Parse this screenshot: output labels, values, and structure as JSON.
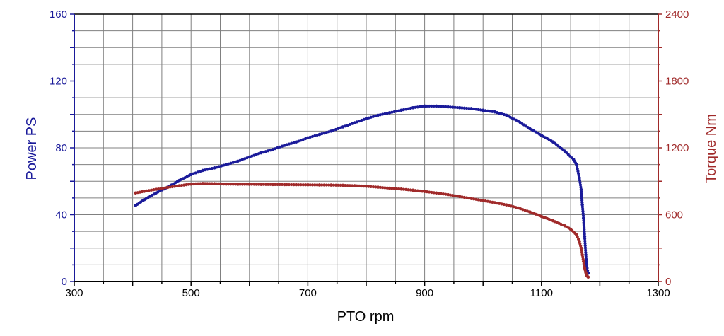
{
  "chart_data": {
    "type": "scatter",
    "title": "",
    "xlabel": "PTO rpm",
    "ylabel_left": "Power PS",
    "ylabel_right": "Torque Nm",
    "xlim": [
      300,
      1300
    ],
    "ylim_left": [
      0,
      160
    ],
    "ylim_right": [
      0,
      2400
    ],
    "grid": true,
    "x_ticks": [
      "300",
      "500",
      "700",
      "900",
      "1100",
      "1300"
    ],
    "y_left_ticks": [
      "0",
      "40",
      "80",
      "120",
      "160"
    ],
    "y_right_ticks": [
      "0",
      "600",
      "1200",
      "1800",
      "2400"
    ],
    "colors": {
      "power": "#1a1a9a",
      "torque": "#a02a2a",
      "grid": "#808080",
      "axis": "#000000"
    },
    "series": [
      {
        "name": "Power PS",
        "axis": "left",
        "points": [
          [
            405,
            45.5
          ],
          [
            420,
            49
          ],
          [
            440,
            53
          ],
          [
            460,
            56.5
          ],
          [
            480,
            60.5
          ],
          [
            500,
            64
          ],
          [
            520,
            66.5
          ],
          [
            540,
            68
          ],
          [
            560,
            70
          ],
          [
            580,
            72
          ],
          [
            600,
            74.5
          ],
          [
            620,
            77
          ],
          [
            640,
            79
          ],
          [
            660,
            81.5
          ],
          [
            680,
            83.5
          ],
          [
            700,
            86
          ],
          [
            720,
            88
          ],
          [
            740,
            90
          ],
          [
            760,
            92.5
          ],
          [
            780,
            95
          ],
          [
            800,
            97.5
          ],
          [
            820,
            99.5
          ],
          [
            840,
            101
          ],
          [
            860,
            102.5
          ],
          [
            880,
            104
          ],
          [
            900,
            105
          ],
          [
            920,
            105
          ],
          [
            940,
            104.5
          ],
          [
            960,
            104
          ],
          [
            980,
            103.5
          ],
          [
            1000,
            102.5
          ],
          [
            1020,
            101.5
          ],
          [
            1040,
            99.5
          ],
          [
            1060,
            96
          ],
          [
            1080,
            91.5
          ],
          [
            1100,
            87.5
          ],
          [
            1120,
            83.5
          ],
          [
            1140,
            78
          ],
          [
            1155,
            73
          ],
          [
            1160,
            70
          ],
          [
            1165,
            62
          ],
          [
            1168,
            55
          ],
          [
            1170,
            46
          ],
          [
            1172,
            38
          ],
          [
            1174,
            27
          ],
          [
            1176,
            16
          ],
          [
            1178,
            8
          ],
          [
            1180,
            5
          ]
        ]
      },
      {
        "name": "Torque Nm",
        "axis": "right",
        "points": [
          [
            405,
            795
          ],
          [
            420,
            810
          ],
          [
            440,
            828
          ],
          [
            460,
            845
          ],
          [
            480,
            860
          ],
          [
            500,
            875
          ],
          [
            520,
            880
          ],
          [
            540,
            878
          ],
          [
            560,
            875
          ],
          [
            580,
            873
          ],
          [
            600,
            873
          ],
          [
            620,
            872
          ],
          [
            640,
            871
          ],
          [
            660,
            870
          ],
          [
            680,
            869
          ],
          [
            700,
            868
          ],
          [
            720,
            867
          ],
          [
            740,
            866
          ],
          [
            760,
            864
          ],
          [
            780,
            860
          ],
          [
            800,
            855
          ],
          [
            820,
            847
          ],
          [
            840,
            838
          ],
          [
            860,
            830
          ],
          [
            880,
            820
          ],
          [
            900,
            808
          ],
          [
            920,
            795
          ],
          [
            940,
            780
          ],
          [
            960,
            763
          ],
          [
            980,
            745
          ],
          [
            1000,
            727
          ],
          [
            1020,
            708
          ],
          [
            1040,
            688
          ],
          [
            1060,
            660
          ],
          [
            1080,
            625
          ],
          [
            1100,
            585
          ],
          [
            1120,
            545
          ],
          [
            1140,
            500
          ],
          [
            1150,
            470
          ],
          [
            1160,
            420
          ],
          [
            1165,
            360
          ],
          [
            1168,
            300
          ],
          [
            1170,
            240
          ],
          [
            1172,
            180
          ],
          [
            1174,
            120
          ],
          [
            1176,
            80
          ],
          [
            1178,
            50
          ],
          [
            1180,
            40
          ]
        ]
      }
    ]
  }
}
